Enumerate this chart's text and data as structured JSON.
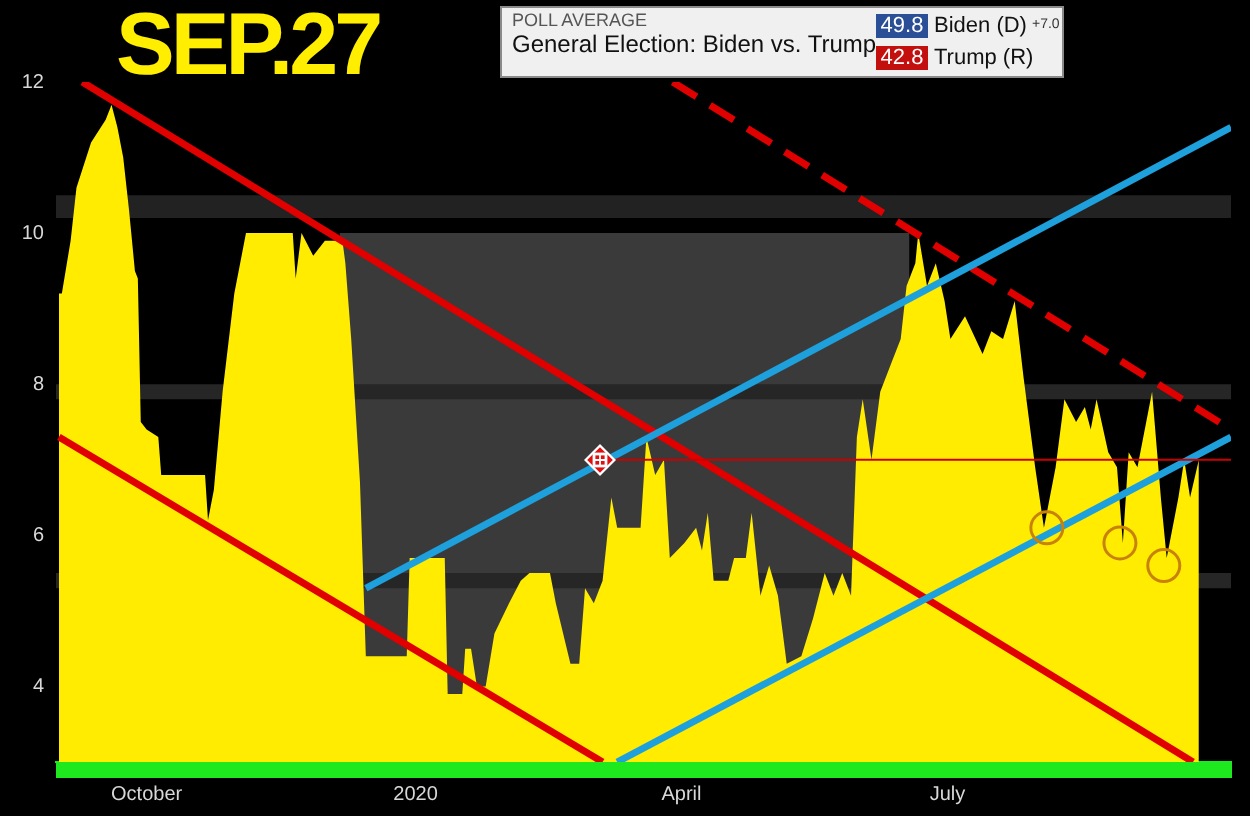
{
  "chart_data": {
    "type": "area",
    "title": "SEP.27",
    "subtitle": "General Election: Biden vs. Trump",
    "annotations": [
      "POLL AVERAGE",
      "49.8",
      "Biden (D)",
      "+7.0",
      "42.8",
      "Trump (R)"
    ],
    "xlim": [
      "2019-08-31",
      "2020-10-06"
    ],
    "xticks": [
      {
        "value": "2019-10-01",
        "label": "October"
      },
      {
        "value": "2020-01-01",
        "label": "2020"
      },
      {
        "value": "2020-04-01",
        "label": "April"
      },
      {
        "value": "2020-07-01",
        "label": "July"
      }
    ],
    "ylim": [
      3,
      12
    ],
    "yticks": [
      4,
      6,
      8,
      10,
      12
    ],
    "bands": [
      {
        "axis": "y",
        "from": 10.2,
        "to": 10.5,
        "color": "#222222"
      },
      {
        "axis": "y",
        "from": 7.8,
        "to": 8.0,
        "color": "#262626"
      },
      {
        "axis": "y",
        "from": 5.3,
        "to": 5.5,
        "color": "#262626"
      }
    ],
    "series": [
      {
        "type": "area",
        "color": "#3a3a3a",
        "x": [
          "2019-12-06",
          "2020-06-18"
        ],
        "values": [
          10.0,
          10.0
        ]
      },
      {
        "color": "#ffec00",
        "x": [
          "2019-09-01",
          "2019-09-02",
          "2019-09-05",
          "2019-09-07",
          "2019-09-12",
          "2019-09-17",
          "2019-09-19",
          "2019-09-21",
          "2019-09-23",
          "2019-09-25",
          "2019-09-27",
          "2019-09-28",
          "2019-09-29",
          "2019-10-01",
          "2019-10-05",
          "2019-10-06",
          "2019-10-21",
          "2019-10-22",
          "2019-10-24",
          "2019-10-27",
          "2019-10-31",
          "2019-11-04",
          "2019-11-20",
          "2019-11-21",
          "2019-11-23",
          "2019-11-27",
          "2019-12-01",
          "2019-12-07",
          "2019-12-08",
          "2019-12-10",
          "2019-12-13",
          "2019-12-15",
          "2019-12-29",
          "2019-12-30",
          "2020-01-11",
          "2020-01-12",
          "2020-01-17",
          "2020-01-18",
          "2020-01-20",
          "2020-01-22",
          "2020-01-25",
          "2020-01-28",
          "2020-02-02",
          "2020-02-06",
          "2020-02-09",
          "2020-02-16",
          "2020-02-18",
          "2020-02-23",
          "2020-02-26",
          "2020-02-28",
          "2020-03-02",
          "2020-03-05",
          "2020-03-08",
          "2020-03-10",
          "2020-03-18",
          "2020-03-20",
          "2020-03-23",
          "2020-03-26",
          "2020-03-28",
          "2020-04-02",
          "2020-04-06",
          "2020-04-08",
          "2020-04-10",
          "2020-04-12",
          "2020-04-17",
          "2020-04-19",
          "2020-04-23",
          "2020-04-25",
          "2020-04-28",
          "2020-05-01",
          "2020-05-04",
          "2020-05-07",
          "2020-05-12",
          "2020-05-16",
          "2020-05-20",
          "2020-05-23",
          "2020-05-26",
          "2020-05-29",
          "2020-05-31",
          "2020-06-02",
          "2020-06-05",
          "2020-06-08",
          "2020-06-12",
          "2020-06-15",
          "2020-06-17",
          "2020-06-20",
          "2020-06-21",
          "2020-06-24",
          "2020-06-27",
          "2020-06-30",
          "2020-07-02",
          "2020-07-07",
          "2020-07-13",
          "2020-07-16",
          "2020-07-20",
          "2020-07-24",
          "2020-07-27",
          "2020-07-31",
          "2020-08-03",
          "2020-08-07",
          "2020-08-10",
          "2020-08-14",
          "2020-08-17",
          "2020-08-19",
          "2020-08-21",
          "2020-08-25",
          "2020-08-28",
          "2020-08-30",
          "2020-09-01",
          "2020-09-04",
          "2020-09-06",
          "2020-09-09",
          "2020-09-12",
          "2020-09-14",
          "2020-09-18",
          "2020-09-20",
          "2020-09-22",
          "2020-09-25"
        ],
        "values": [
          9.2,
          9.2,
          9.9,
          10.6,
          11.2,
          11.5,
          11.7,
          11.4,
          11.0,
          10.3,
          9.5,
          9.4,
          7.5,
          7.4,
          7.3,
          6.8,
          6.8,
          6.2,
          6.6,
          7.9,
          9.2,
          10.0,
          10.0,
          9.4,
          10.0,
          9.7,
          9.9,
          9.9,
          9.6,
          8.6,
          6.7,
          4.4,
          4.4,
          5.7,
          5.7,
          3.9,
          3.9,
          4.5,
          4.5,
          4.0,
          4.0,
          4.7,
          5.1,
          5.4,
          5.5,
          5.5,
          5.1,
          4.3,
          4.3,
          5.3,
          5.1,
          5.4,
          6.5,
          6.1,
          6.1,
          7.3,
          6.8,
          7.0,
          5.7,
          5.9,
          6.1,
          5.8,
          6.3,
          5.4,
          5.4,
          5.7,
          5.7,
          6.3,
          5.2,
          5.6,
          5.2,
          4.3,
          4.4,
          4.9,
          5.5,
          5.2,
          5.5,
          5.2,
          7.3,
          7.8,
          7.0,
          7.9,
          8.3,
          8.6,
          9.3,
          9.6,
          10.0,
          9.3,
          9.6,
          9.1,
          8.6,
          8.9,
          8.4,
          8.7,
          8.6,
          9.1,
          8.1,
          6.9,
          6.1,
          6.9,
          7.8,
          7.5,
          7.7,
          7.4,
          7.8,
          7.1,
          6.9,
          5.9,
          7.1,
          6.9,
          7.3,
          7.9,
          6.5,
          5.7,
          6.5,
          7.0,
          6.5,
          7.0
        ]
      },
      {
        "type": "line",
        "color": "#e00000",
        "x": [
          "2019-09-09",
          "2020-09-23"
        ],
        "values": [
          12.0,
          3.0
        ]
      },
      {
        "type": "line",
        "color": "#e00000",
        "x": [
          "2019-09-01",
          "2020-03-05"
        ],
        "values": [
          7.3,
          3.0
        ]
      },
      {
        "type": "line",
        "color": "#e00000",
        "line_style": "dashed",
        "x": [
          "2020-03-29",
          "2020-10-06"
        ],
        "values": [
          12.0,
          7.4
        ]
      },
      {
        "type": "line",
        "color": "#1ea0dc",
        "x": [
          "2019-12-15",
          "2020-10-06"
        ],
        "values": [
          5.3,
          11.4
        ]
      },
      {
        "type": "line",
        "color": "#1ea0dc",
        "x": [
          "2020-03-10",
          "2020-10-06"
        ],
        "values": [
          3.0,
          7.3
        ]
      },
      {
        "type": "line",
        "color": "#cc0000",
        "x": [
          "2020-03-04",
          "2020-10-06"
        ],
        "values": [
          7.0,
          7.0
        ]
      },
      {
        "type": "scatter",
        "color": "#c8820a",
        "marker": "circle",
        "x": [
          "2020-08-04",
          "2020-08-29",
          "2020-09-13"
        ],
        "values": [
          6.1,
          5.9,
          5.6
        ]
      }
    ]
  }
}
